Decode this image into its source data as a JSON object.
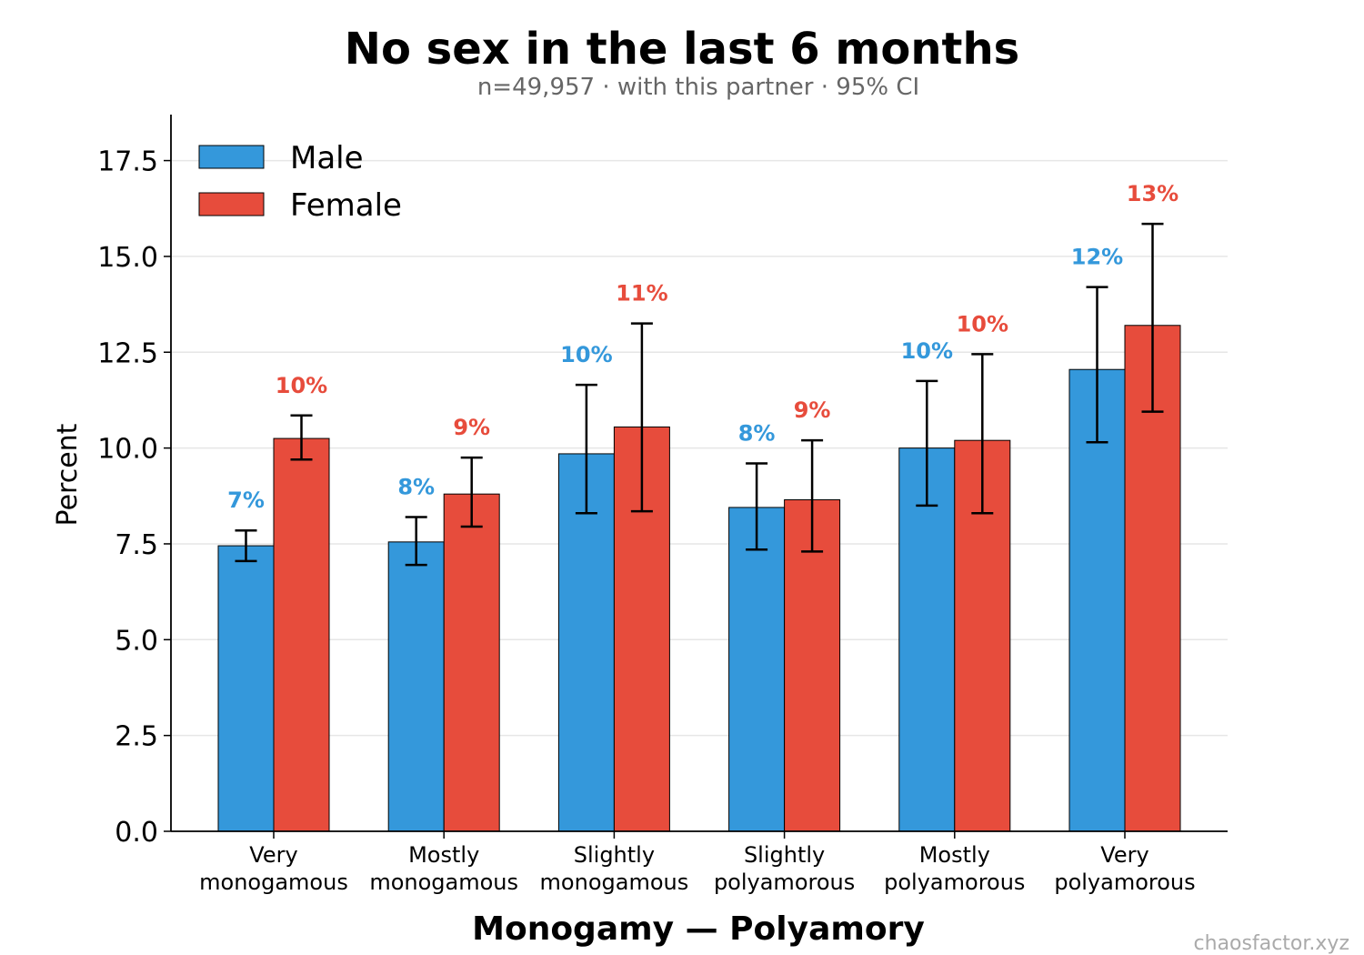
{
  "chart_data": {
    "type": "bar",
    "title": "No sex in the last 6 months",
    "subtitle": "n=49,957 · with this partner · 95% CI",
    "xlabel": "Monogamy — Polyamory",
    "ylabel": "Percent",
    "ylim": [
      0,
      18.7
    ],
    "yticks": [
      "0.0",
      "2.5",
      "5.0",
      "7.5",
      "10.0",
      "12.5",
      "15.0",
      "17.5"
    ],
    "grid": "horizontal",
    "legend_position": "top-left",
    "categories": [
      [
        "Very",
        "monogamous"
      ],
      [
        "Mostly",
        "monogamous"
      ],
      [
        "Slightly",
        "monogamous"
      ],
      [
        "Slightly",
        "polyamorous"
      ],
      [
        "Mostly",
        "polyamorous"
      ],
      [
        "Very",
        "polyamorous"
      ]
    ],
    "series": [
      {
        "name": "Male",
        "color": "#3498db",
        "values": [
          7.45,
          7.55,
          9.85,
          8.45,
          10.0,
          12.05
        ],
        "ci_low": [
          7.05,
          6.95,
          8.3,
          7.35,
          8.5,
          10.15
        ],
        "ci_high": [
          7.85,
          8.2,
          11.65,
          9.6,
          11.75,
          14.2
        ],
        "labels": [
          "7%",
          "8%",
          "10%",
          "8%",
          "10%",
          "12%"
        ]
      },
      {
        "name": "Female",
        "color": "#e74c3c",
        "values": [
          10.25,
          8.8,
          10.55,
          8.65,
          10.2,
          13.2
        ],
        "ci_low": [
          9.7,
          7.95,
          8.35,
          7.3,
          8.3,
          10.95
        ],
        "ci_high": [
          10.85,
          9.75,
          13.25,
          10.2,
          12.45,
          15.85
        ],
        "labels": [
          "10%",
          "9%",
          "11%",
          "9%",
          "10%",
          "13%"
        ]
      }
    ]
  },
  "watermark": "chaosfactor.xyz"
}
